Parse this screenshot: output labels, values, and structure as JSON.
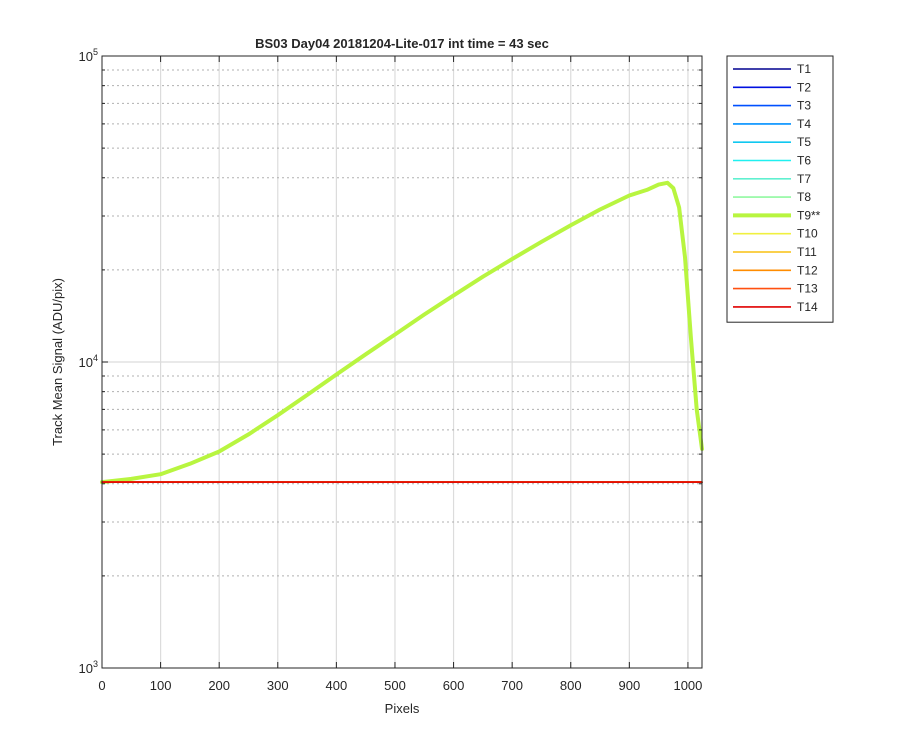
{
  "chart_data": {
    "type": "line",
    "title": "BS03 Day04 20181204-Lite-017 int time = 43 sec",
    "xlabel": "Pixels",
    "ylabel": "Track Mean Signal (ADU/pix)",
    "xlim": [
      0,
      1024
    ],
    "ylim": [
      1000,
      100000
    ],
    "yscale": "log",
    "grid": true,
    "legend_position": "outside-top-right",
    "x_ticks": [
      0,
      100,
      200,
      300,
      400,
      500,
      600,
      700,
      800,
      900,
      1000
    ],
    "x_tick_labels": [
      "0",
      "100",
      "200",
      "300",
      "400",
      "500",
      "600",
      "700",
      "800",
      "900",
      "1000"
    ],
    "y_tick_labels": [
      {
        "base": "10",
        "exp": "3"
      },
      {
        "base": "10",
        "exp": "4"
      },
      {
        "base": "10",
        "exp": "5"
      }
    ],
    "series": [
      {
        "name": "T1",
        "color": "#00008f",
        "bold": false,
        "x": [
          0,
          1024
        ],
        "y": [
          4050,
          4050
        ]
      },
      {
        "name": "T2",
        "color": "#0010e0",
        "bold": false,
        "x": [
          0,
          1024
        ],
        "y": [
          4050,
          4050
        ]
      },
      {
        "name": "T3",
        "color": "#0050ff",
        "bold": false,
        "x": [
          0,
          1024
        ],
        "y": [
          4050,
          4050
        ]
      },
      {
        "name": "T4",
        "color": "#0090ff",
        "bold": false,
        "x": [
          0,
          1024
        ],
        "y": [
          4050,
          4050
        ]
      },
      {
        "name": "T5",
        "color": "#10c8f0",
        "bold": false,
        "x": [
          0,
          1024
        ],
        "y": [
          4050,
          4050
        ]
      },
      {
        "name": "T6",
        "color": "#20f0f0",
        "bold": false,
        "x": [
          0,
          1024
        ],
        "y": [
          4050,
          4050
        ]
      },
      {
        "name": "T7",
        "color": "#60f0d0",
        "bold": false,
        "x": [
          0,
          1024
        ],
        "y": [
          4050,
          4050
        ]
      },
      {
        "name": "T8",
        "color": "#90f8a0",
        "bold": false,
        "x": [
          0,
          1024
        ],
        "y": [
          4050,
          4050
        ]
      },
      {
        "name": "T9**",
        "color": "#b8f540",
        "bold": true,
        "x": [
          0,
          50,
          100,
          150,
          200,
          250,
          300,
          350,
          400,
          450,
          500,
          550,
          600,
          650,
          700,
          750,
          800,
          850,
          900,
          930,
          950,
          965,
          975,
          985,
          995,
          1005,
          1015,
          1024
        ],
        "y": [
          4050,
          4150,
          4300,
          4650,
          5100,
          5800,
          6700,
          7800,
          9100,
          10600,
          12300,
          14300,
          16500,
          19000,
          21700,
          24700,
          28000,
          31500,
          35000,
          36500,
          38000,
          38500,
          37000,
          32000,
          22000,
          12000,
          7000,
          5200
        ]
      },
      {
        "name": "T10",
        "color": "#f0f040",
        "bold": false,
        "x": [
          0,
          1024
        ],
        "y": [
          4050,
          4050
        ]
      },
      {
        "name": "T11",
        "color": "#f8c010",
        "bold": false,
        "x": [
          0,
          1024
        ],
        "y": [
          4050,
          4050
        ]
      },
      {
        "name": "T12",
        "color": "#ff8c00",
        "bold": false,
        "x": [
          0,
          1024
        ],
        "y": [
          4050,
          4050
        ]
      },
      {
        "name": "T13",
        "color": "#ff5010",
        "bold": false,
        "x": [
          0,
          1024
        ],
        "y": [
          4050,
          4050
        ]
      },
      {
        "name": "T14",
        "color": "#e00000",
        "bold": false,
        "x": [
          0,
          1024
        ],
        "y": [
          4050,
          4050
        ]
      }
    ]
  }
}
